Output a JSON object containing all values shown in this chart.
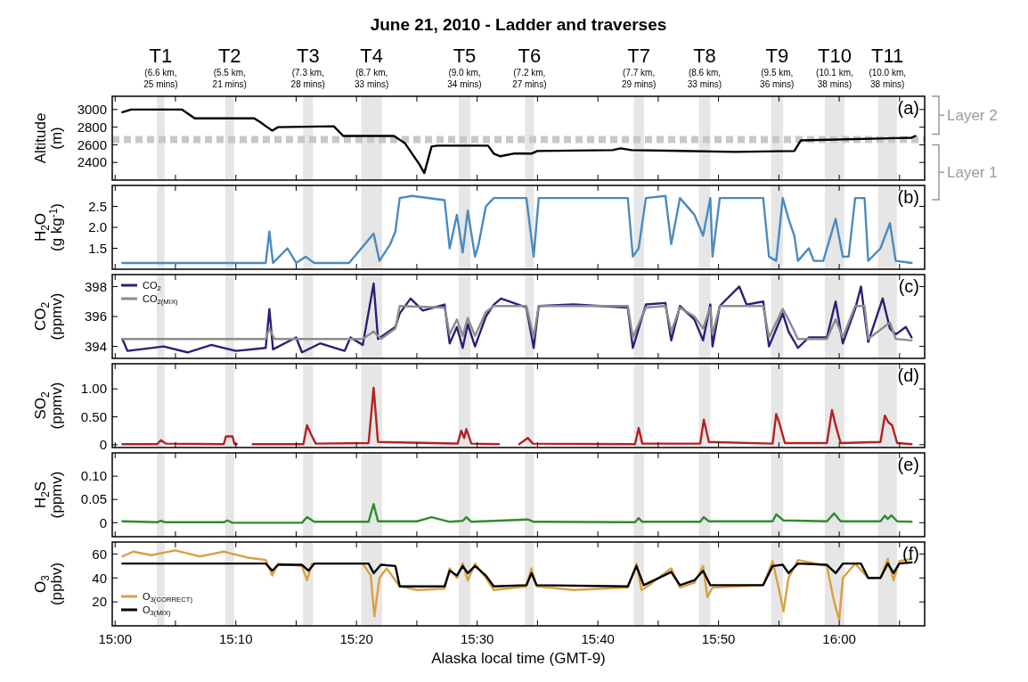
{
  "chart_data": [
    {
      "type": "line",
      "title": "June 21, 2010 - Ladder and traverses",
      "ylabel": "Altitude (m)",
      "xlim": [
        14.996,
        16.118
      ],
      "ylim": [
        2200,
        3150
      ],
      "yticks": [
        2400,
        2600,
        2800,
        3000
      ],
      "tick_labels": "y",
      "xticks": [
        {
          "value": 15,
          "label": null
        },
        {
          "value": 15.0833,
          "label": null
        },
        {
          "value": 15.1667,
          "label": null
        },
        {
          "value": 15.25,
          "label": null
        },
        {
          "value": 15.3333,
          "label": null
        },
        {
          "value": 15.4167,
          "label": null
        },
        {
          "value": 15.5,
          "label": null
        },
        {
          "value": 15.5833,
          "label": null
        },
        {
          "value": 15.6667,
          "label": null
        },
        {
          "value": 15.75,
          "label": null
        },
        {
          "value": 15.8333,
          "label": null
        },
        {
          "value": 15.9167,
          "label": null
        },
        {
          "value": 16,
          "label": null
        },
        {
          "value": 16.0833,
          "label": null
        }
      ],
      "bands": [
        {
          "axis": "x",
          "from": 15.0577,
          "to": 15.0682,
          "label": "T1 (6.6 km, 25 mins)",
          "color": "#e6e6e6"
        },
        {
          "axis": "x",
          "from": 15.152,
          "to": 15.1642,
          "label": "T2 (5.5 km, 21 mins)",
          "color": "#e6e6e6"
        },
        {
          "axis": "x",
          "from": 15.2595,
          "to": 15.2733,
          "label": "T3 (7.3 km, 28 mins)",
          "color": "#e6e6e6"
        },
        {
          "axis": "x",
          "from": 15.3398,
          "to": 15.3687,
          "label": "T4 (8.7 km, 33 mins)",
          "color": "#e6e6e6"
        },
        {
          "axis": "x",
          "from": 15.4743,
          "to": 15.4908,
          "label": "T5 (9.0 km, 34 mins)",
          "color": "#e6e6e6"
        },
        {
          "axis": "x",
          "from": 15.566,
          "to": 15.5783,
          "label": "T6 (7.2 km, 27 mins)",
          "color": "#e6e6e6"
        },
        {
          "axis": "x",
          "from": 15.7163,
          "to": 15.7303,
          "label": "T7 (7.7 km, 29 mins)",
          "color": "#e6e6e6"
        },
        {
          "axis": "x",
          "from": 15.8062,
          "to": 15.822,
          "label": "T8 (8.6 km, 33 mins)",
          "color": "#e6e6e6"
        },
        {
          "axis": "x",
          "from": 15.9058,
          "to": 15.9225,
          "label": "T9 (9.5 km, 36 mins)",
          "color": "#e6e6e6"
        },
        {
          "axis": "x",
          "from": 15.9802,
          "to": 16.0072,
          "label": "T10 (10.1 km, 38 mins)",
          "color": "#e6e6e6"
        },
        {
          "axis": "x",
          "from": 16.0535,
          "to": 16.0797,
          "label": "T11 (10.0 km, 38 mins)",
          "color": "#e6e6e6"
        }
      ],
      "ref_lines": [
        {
          "axis": "y",
          "value": 2660,
          "color": "#c8c8c8",
          "line_style": "dashed"
        }
      ],
      "annotations": [
        "(a)",
        "Layer 2",
        "Layer 1"
      ],
      "series": [
        {
          "color": "#000000",
          "x": [
            15.01,
            15.022,
            15.092,
            15.11,
            15.192,
            15.2,
            15.21,
            15.217,
            15.225,
            15.302,
            15.315,
            15.385,
            15.4,
            15.42,
            15.427,
            15.437,
            15.445,
            15.515,
            15.523,
            15.532,
            15.55,
            15.575,
            15.583,
            15.687,
            15.698,
            15.713,
            15.857,
            15.938,
            15.947,
            16.1,
            16.105
          ],
          "values": [
            2970,
            3000,
            3000,
            2900,
            2900,
            2860,
            2800,
            2760,
            2800,
            2810,
            2700,
            2700,
            2620,
            2380,
            2280,
            2580,
            2590,
            2590,
            2500,
            2470,
            2500,
            2500,
            2530,
            2540,
            2560,
            2540,
            2520,
            2530,
            2650,
            2680,
            2700
          ]
        }
      ]
    },
    {
      "type": "line",
      "ylabel": "H$_{2}$O (g kg$^{-1}$)",
      "xlim": [
        14.996,
        16.118
      ],
      "ylim": [
        1.0,
        3.0
      ],
      "yticks": [
        {
          "value": 1.5,
          "label": "1.5"
        },
        {
          "value": 2.0,
          "label": "2.0"
        },
        {
          "value": 2.5,
          "label": "2.5"
        }
      ],
      "tick_labels": "y",
      "xticks": [
        {
          "value": 15,
          "label": null
        },
        {
          "value": 15.0833,
          "label": null
        },
        {
          "value": 15.1667,
          "label": null
        },
        {
          "value": 15.25,
          "label": null
        },
        {
          "value": 15.3333,
          "label": null
        },
        {
          "value": 15.4167,
          "label": null
        },
        {
          "value": 15.5,
          "label": null
        },
        {
          "value": 15.5833,
          "label": null
        },
        {
          "value": 15.6667,
          "label": null
        },
        {
          "value": 15.75,
          "label": null
        },
        {
          "value": 15.8333,
          "label": null
        },
        {
          "value": 15.9167,
          "label": null
        },
        {
          "value": 16,
          "label": null
        },
        {
          "value": 16.0833,
          "label": null
        }
      ],
      "bands": [
        {
          "axis": "x",
          "from": 15.0577,
          "to": 15.0682,
          "color": "#e6e6e6"
        },
        {
          "axis": "x",
          "from": 15.152,
          "to": 15.1642,
          "color": "#e6e6e6"
        },
        {
          "axis": "x",
          "from": 15.2595,
          "to": 15.2733,
          "color": "#e6e6e6"
        },
        {
          "axis": "x",
          "from": 15.3398,
          "to": 15.3687,
          "color": "#e6e6e6"
        },
        {
          "axis": "x",
          "from": 15.4743,
          "to": 15.4908,
          "color": "#e6e6e6"
        },
        {
          "axis": "x",
          "from": 15.566,
          "to": 15.5783,
          "color": "#e6e6e6"
        },
        {
          "axis": "x",
          "from": 15.7163,
          "to": 15.7303,
          "color": "#e6e6e6"
        },
        {
          "axis": "x",
          "from": 15.8062,
          "to": 15.822,
          "color": "#e6e6e6"
        },
        {
          "axis": "x",
          "from": 15.9058,
          "to": 15.9225,
          "color": "#e6e6e6"
        },
        {
          "axis": "x",
          "from": 15.9802,
          "to": 16.0072,
          "color": "#e6e6e6"
        },
        {
          "axis": "x",
          "from": 16.0535,
          "to": 16.0797,
          "color": "#e6e6e6"
        }
      ],
      "annotations": [
        "(b)"
      ],
      "series": [
        {
          "color": "#4a8bbf",
          "x": [
            15.01,
            15.208,
            15.213,
            15.218,
            15.238,
            15.25,
            15.263,
            15.275,
            15.323,
            15.345,
            15.357,
            15.365,
            15.38,
            15.387,
            15.393,
            15.41,
            15.455,
            15.462,
            15.472,
            15.48,
            15.487,
            15.497,
            15.502,
            15.512,
            15.523,
            15.568,
            15.578,
            15.585,
            15.708,
            15.715,
            15.723,
            15.733,
            15.76,
            15.768,
            15.78,
            15.8,
            15.812,
            15.822,
            15.825,
            15.835,
            15.895,
            15.903,
            15.913,
            15.922,
            15.93,
            15.938,
            15.943,
            15.958,
            15.965,
            15.978,
            15.995,
            16.005,
            16.013,
            16.022,
            16.035,
            16.04,
            16.057,
            16.07,
            16.078,
            16.1
          ],
          "values": [
            1.15,
            1.15,
            1.9,
            1.15,
            1.5,
            1.15,
            1.3,
            1.15,
            1.15,
            1.6,
            1.85,
            1.2,
            1.6,
            1.9,
            2.7,
            2.75,
            2.65,
            1.5,
            2.3,
            1.4,
            2.4,
            1.3,
            1.6,
            2.5,
            2.7,
            2.7,
            1.3,
            2.7,
            2.7,
            1.3,
            1.5,
            2.7,
            2.75,
            1.6,
            2.7,
            2.3,
            1.8,
            2.7,
            1.3,
            2.7,
            2.7,
            1.3,
            1.2,
            2.7,
            2.2,
            1.8,
            1.2,
            1.5,
            1.2,
            1.2,
            2.2,
            1.3,
            1.3,
            2.7,
            2.7,
            1.2,
            1.5,
            2.1,
            1.2,
            1.15
          ]
        }
      ]
    },
    {
      "type": "line",
      "ylabel": "CO$_{2}$ (ppmv)",
      "xlim": [
        14.996,
        16.118
      ],
      "ylim": [
        393.2,
        398.8
      ],
      "yticks": [
        394,
        396,
        398
      ],
      "tick_labels": "y",
      "legend": "top left",
      "xticks": [
        {
          "value": 15,
          "label": null
        },
        {
          "value": 15.0833,
          "label": null
        },
        {
          "value": 15.1667,
          "label": null
        },
        {
          "value": 15.25,
          "label": null
        },
        {
          "value": 15.3333,
          "label": null
        },
        {
          "value": 15.4167,
          "label": null
        },
        {
          "value": 15.5,
          "label": null
        },
        {
          "value": 15.5833,
          "label": null
        },
        {
          "value": 15.6667,
          "label": null
        },
        {
          "value": 15.75,
          "label": null
        },
        {
          "value": 15.8333,
          "label": null
        },
        {
          "value": 15.9167,
          "label": null
        },
        {
          "value": 16,
          "label": null
        },
        {
          "value": 16.0833,
          "label": null
        }
      ],
      "bands": [
        {
          "axis": "x",
          "from": 15.0577,
          "to": 15.0682,
          "color": "#e6e6e6"
        },
        {
          "axis": "x",
          "from": 15.152,
          "to": 15.1642,
          "color": "#e6e6e6"
        },
        {
          "axis": "x",
          "from": 15.2595,
          "to": 15.2733,
          "color": "#e6e6e6"
        },
        {
          "axis": "x",
          "from": 15.3398,
          "to": 15.3687,
          "color": "#e6e6e6"
        },
        {
          "axis": "x",
          "from": 15.4743,
          "to": 15.4908,
          "color": "#e6e6e6"
        },
        {
          "axis": "x",
          "from": 15.566,
          "to": 15.5783,
          "color": "#e6e6e6"
        },
        {
          "axis": "x",
          "from": 15.7163,
          "to": 15.7303,
          "color": "#e6e6e6"
        },
        {
          "axis": "x",
          "from": 15.8062,
          "to": 15.822,
          "color": "#e6e6e6"
        },
        {
          "axis": "x",
          "from": 15.9058,
          "to": 15.9225,
          "color": "#e6e6e6"
        },
        {
          "axis": "x",
          "from": 15.9802,
          "to": 16.0072,
          "color": "#e6e6e6"
        },
        {
          "axis": "x",
          "from": 16.0535,
          "to": 16.0797,
          "color": "#e6e6e6"
        }
      ],
      "annotations": [
        "(c)"
      ],
      "series": [
        {
          "name": "CO$_{2}$",
          "color": "#2b1f78",
          "x": [
            15.01,
            15.017,
            15.067,
            15.1,
            15.133,
            15.167,
            15.208,
            15.213,
            15.218,
            15.25,
            15.258,
            15.283,
            15.317,
            15.325,
            15.342,
            15.357,
            15.363,
            15.387,
            15.393,
            15.408,
            15.425,
            15.455,
            15.462,
            15.472,
            15.48,
            15.487,
            15.497,
            15.512,
            15.523,
            15.533,
            15.568,
            15.578,
            15.585,
            15.633,
            15.708,
            15.715,
            15.733,
            15.76,
            15.768,
            15.78,
            15.8,
            15.812,
            15.822,
            15.825,
            15.835,
            15.862,
            15.872,
            15.895,
            15.903,
            15.922,
            15.93,
            15.943,
            15.958,
            15.983,
            15.995,
            16.005,
            16.022,
            16.03,
            16.04,
            16.06,
            16.07,
            16.078,
            16.092,
            16.1
          ],
          "values": [
            394.5,
            393.7,
            394.0,
            393.6,
            394.1,
            393.7,
            393.9,
            396.5,
            393.8,
            394.6,
            393.6,
            394.2,
            393.7,
            394.6,
            394.1,
            398.2,
            394.5,
            395.3,
            396.2,
            397.2,
            396.4,
            396.8,
            394.2,
            395.3,
            393.9,
            395.5,
            394.0,
            396.0,
            396.8,
            397.2,
            396.6,
            393.9,
            396.7,
            396.8,
            396.6,
            393.9,
            396.8,
            396.9,
            394.4,
            396.7,
            395.8,
            394.4,
            396.8,
            394.0,
            396.7,
            398.0,
            396.8,
            397.0,
            394.0,
            396.2,
            395.0,
            393.9,
            394.6,
            394.6,
            397.0,
            394.2,
            396.5,
            398.0,
            394.3,
            397.2,
            395.2,
            394.8,
            395.3,
            394.6
          ]
        },
        {
          "name": "CO$_{2(MIX)}$",
          "color": "#8c8c8c",
          "x": [
            15.01,
            15.208,
            15.213,
            15.22,
            15.342,
            15.357,
            15.367,
            15.387,
            15.393,
            15.455,
            15.462,
            15.472,
            15.48,
            15.487,
            15.497,
            15.512,
            15.523,
            15.568,
            15.578,
            15.585,
            15.708,
            15.715,
            15.733,
            15.76,
            15.768,
            15.78,
            15.8,
            15.812,
            15.822,
            15.825,
            15.835,
            15.895,
            15.903,
            15.922,
            15.93,
            15.943,
            15.983,
            15.995,
            16.005,
            16.022,
            16.035,
            16.04,
            16.07,
            16.078,
            16.1
          ],
          "values": [
            394.5,
            394.5,
            395.2,
            394.5,
            394.5,
            395.0,
            394.5,
            395.2,
            396.7,
            396.6,
            394.8,
            395.8,
            394.7,
            395.9,
            394.7,
            396.3,
            396.7,
            396.7,
            394.6,
            396.7,
            396.7,
            394.6,
            396.6,
            396.7,
            395.0,
            396.6,
            396.0,
            395.2,
            396.6,
            394.8,
            396.7,
            396.7,
            394.6,
            396.5,
            395.8,
            394.5,
            394.5,
            395.8,
            394.6,
            396.7,
            396.7,
            394.5,
            395.6,
            394.5,
            394.4
          ]
        }
      ]
    },
    {
      "type": "line",
      "ylabel": "SO$_{2}$ (ppmv)",
      "xlim": [
        14.996,
        16.118
      ],
      "ylim": [
        -0.05,
        1.45
      ],
      "yticks": [
        0,
        {
          "value": 0.5,
          "label": "0.50"
        },
        {
          "value": 1.0,
          "label": "1.00"
        }
      ],
      "tick_labels": "y",
      "xticks": [
        {
          "value": 15,
          "label": null
        },
        {
          "value": 15.0833,
          "label": null
        },
        {
          "value": 15.1667,
          "label": null
        },
        {
          "value": 15.25,
          "label": null
        },
        {
          "value": 15.3333,
          "label": null
        },
        {
          "value": 15.4167,
          "label": null
        },
        {
          "value": 15.5,
          "label": null
        },
        {
          "value": 15.5833,
          "label": null
        },
        {
          "value": 15.6667,
          "label": null
        },
        {
          "value": 15.75,
          "label": null
        },
        {
          "value": 15.8333,
          "label": null
        },
        {
          "value": 15.9167,
          "label": null
        },
        {
          "value": 16,
          "label": null
        },
        {
          "value": 16.0833,
          "label": null
        }
      ],
      "bands": [
        {
          "axis": "x",
          "from": 15.0577,
          "to": 15.0682,
          "color": "#e6e6e6"
        },
        {
          "axis": "x",
          "from": 15.152,
          "to": 15.1642,
          "color": "#e6e6e6"
        },
        {
          "axis": "x",
          "from": 15.2595,
          "to": 15.2733,
          "color": "#e6e6e6"
        },
        {
          "axis": "x",
          "from": 15.3398,
          "to": 15.3687,
          "color": "#e6e6e6"
        },
        {
          "axis": "x",
          "from": 15.4743,
          "to": 15.4908,
          "color": "#e6e6e6"
        },
        {
          "axis": "x",
          "from": 15.566,
          "to": 15.5783,
          "color": "#e6e6e6"
        },
        {
          "axis": "x",
          "from": 15.7163,
          "to": 15.7303,
          "color": "#e6e6e6"
        },
        {
          "axis": "x",
          "from": 15.8062,
          "to": 15.822,
          "color": "#e6e6e6"
        },
        {
          "axis": "x",
          "from": 15.9058,
          "to": 15.9225,
          "color": "#e6e6e6"
        },
        {
          "axis": "x",
          "from": 15.9802,
          "to": 16.0072,
          "color": "#e6e6e6"
        },
        {
          "axis": "x",
          "from": 16.0535,
          "to": 16.0797,
          "color": "#e6e6e6"
        }
      ],
      "annotations": [
        "(d)"
      ],
      "series": [
        {
          "color": "#b22222",
          "x": [
            15.01,
            15.058,
            15.063,
            15.07,
            15.15,
            15.153,
            15.162,
            15.165,
            15.168,
            15.175,
            15.19,
            15.26,
            15.265,
            15.27,
            15.277,
            15.35,
            15.357,
            15.363,
            15.473,
            15.478,
            15.482,
            15.485,
            15.492,
            15.53,
            15.542,
            15.558,
            15.57,
            15.577,
            15.718,
            15.723,
            15.728,
            15.808,
            15.813,
            15.82,
            15.908,
            15.913,
            15.917,
            15.925,
            15.983,
            15.99,
            15.995,
            16.002,
            16.057,
            16.063,
            16.068,
            16.073,
            16.08,
            16.1
          ],
          "values": [
            0.01,
            0.01,
            0.08,
            0.02,
            0.01,
            0.15,
            0.15,
            0.01,
            0.01,
            null,
            0.01,
            0.01,
            0.35,
            0.2,
            0.02,
            0.03,
            1.02,
            0.05,
            0.02,
            0.25,
            0.12,
            0.28,
            0.02,
            0.01,
            null,
            0.01,
            0.12,
            0.02,
            0.01,
            0.3,
            0.02,
            0.02,
            0.45,
            0.05,
            0.02,
            0.55,
            0.4,
            0.03,
            0.03,
            0.62,
            0.35,
            0.03,
            0.05,
            0.52,
            0.4,
            0.35,
            0.03,
            0.01
          ]
        }
      ]
    },
    {
      "type": "line",
      "ylabel": "H$_{2}$S (ppmv)",
      "xlim": [
        14.996,
        16.118
      ],
      "ylim": [
        -0.03,
        0.15
      ],
      "yticks": [
        0,
        {
          "value": 0.05,
          "label": "0.05"
        },
        {
          "value": 0.1,
          "label": "0.10"
        }
      ],
      "tick_labels": "y",
      "xticks": [
        {
          "value": 15,
          "label": null
        },
        {
          "value": 15.0833,
          "label": null
        },
        {
          "value": 15.1667,
          "label": null
        },
        {
          "value": 15.25,
          "label": null
        },
        {
          "value": 15.3333,
          "label": null
        },
        {
          "value": 15.4167,
          "label": null
        },
        {
          "value": 15.5,
          "label": null
        },
        {
          "value": 15.5833,
          "label": null
        },
        {
          "value": 15.6667,
          "label": null
        },
        {
          "value": 15.75,
          "label": null
        },
        {
          "value": 15.8333,
          "label": null
        },
        {
          "value": 15.9167,
          "label": null
        },
        {
          "value": 16,
          "label": null
        },
        {
          "value": 16.0833,
          "label": null
        }
      ],
      "bands": [
        {
          "axis": "x",
          "from": 15.0577,
          "to": 15.0682,
          "color": "#e6e6e6"
        },
        {
          "axis": "x",
          "from": 15.152,
          "to": 15.1642,
          "color": "#e6e6e6"
        },
        {
          "axis": "x",
          "from": 15.2595,
          "to": 15.2733,
          "color": "#e6e6e6"
        },
        {
          "axis": "x",
          "from": 15.3398,
          "to": 15.3687,
          "color": "#e6e6e6"
        },
        {
          "axis": "x",
          "from": 15.4743,
          "to": 15.4908,
          "color": "#e6e6e6"
        },
        {
          "axis": "x",
          "from": 15.566,
          "to": 15.5783,
          "color": "#e6e6e6"
        },
        {
          "axis": "x",
          "from": 15.7163,
          "to": 15.7303,
          "color": "#e6e6e6"
        },
        {
          "axis": "x",
          "from": 15.8062,
          "to": 15.822,
          "color": "#e6e6e6"
        },
        {
          "axis": "x",
          "from": 15.9058,
          "to": 15.9225,
          "color": "#e6e6e6"
        },
        {
          "axis": "x",
          "from": 15.9802,
          "to": 16.0072,
          "color": "#e6e6e6"
        },
        {
          "axis": "x",
          "from": 16.0535,
          "to": 16.0797,
          "color": "#e6e6e6"
        }
      ],
      "annotations": [
        "(e)"
      ],
      "series": [
        {
          "color": "#2e8b2e",
          "x": [
            15.01,
            15.058,
            15.063,
            15.07,
            15.15,
            15.155,
            15.162,
            15.258,
            15.265,
            15.275,
            15.35,
            15.357,
            15.363,
            15.417,
            15.437,
            15.462,
            15.48,
            15.485,
            15.492,
            15.57,
            15.578,
            15.718,
            15.723,
            15.728,
            15.808,
            15.813,
            15.82,
            15.908,
            15.913,
            15.923,
            15.983,
            15.993,
            16.002,
            16.057,
            16.063,
            16.067,
            16.072,
            16.08,
            16.1
          ],
          "values": [
            0.003,
            0.001,
            0.004,
            0.001,
            0.001,
            0.005,
            0.0,
            0.0,
            0.012,
            0.002,
            0.002,
            0.04,
            0.003,
            0.003,
            0.012,
            0.002,
            0.004,
            0.012,
            0.002,
            0.007,
            0.002,
            0.001,
            0.01,
            0.002,
            0.002,
            0.012,
            0.003,
            0.003,
            0.018,
            0.005,
            0.003,
            0.02,
            0.003,
            0.003,
            0.015,
            0.008,
            0.016,
            0.003,
            0.002
          ]
        }
      ]
    },
    {
      "type": "line",
      "ylabel": "O$_{3}$ (ppbv)",
      "xlabel": "Alaska local time (GMT-9)",
      "xlim": [
        14.996,
        16.118
      ],
      "ylim": [
        0,
        70
      ],
      "yticks": [
        20,
        40,
        60
      ],
      "legend": "bottom left",
      "xticks": [
        {
          "value": 15,
          "label": "15:00"
        },
        {
          "value": 15.0833,
          "label": null
        },
        {
          "value": 15.1667,
          "label": "15:10"
        },
        {
          "value": 15.25,
          "label": null
        },
        {
          "value": 15.3333,
          "label": "15:20"
        },
        {
          "value": 15.4167,
          "label": null
        },
        {
          "value": 15.5,
          "label": "15:30"
        },
        {
          "value": 15.5833,
          "label": null
        },
        {
          "value": 15.6667,
          "label": "15:40"
        },
        {
          "value": 15.75,
          "label": null
        },
        {
          "value": 15.8333,
          "label": "15:50"
        },
        {
          "value": 15.9167,
          "label": null
        },
        {
          "value": 16,
          "label": "16:00"
        },
        {
          "value": 16.0833,
          "label": null
        }
      ],
      "bands": [
        {
          "axis": "x",
          "from": 15.0577,
          "to": 15.0682,
          "color": "#e6e6e6"
        },
        {
          "axis": "x",
          "from": 15.152,
          "to": 15.1642,
          "color": "#e6e6e6"
        },
        {
          "axis": "x",
          "from": 15.2595,
          "to": 15.2733,
          "color": "#e6e6e6"
        },
        {
          "axis": "x",
          "from": 15.3398,
          "to": 15.3687,
          "color": "#e6e6e6"
        },
        {
          "axis": "x",
          "from": 15.4743,
          "to": 15.4908,
          "color": "#e6e6e6"
        },
        {
          "axis": "x",
          "from": 15.566,
          "to": 15.5783,
          "color": "#e6e6e6"
        },
        {
          "axis": "x",
          "from": 15.7163,
          "to": 15.7303,
          "color": "#e6e6e6"
        },
        {
          "axis": "x",
          "from": 15.8062,
          "to": 15.822,
          "color": "#e6e6e6"
        },
        {
          "axis": "x",
          "from": 15.9058,
          "to": 15.9225,
          "color": "#e6e6e6"
        },
        {
          "axis": "x",
          "from": 15.9802,
          "to": 16.0072,
          "color": "#e6e6e6"
        },
        {
          "axis": "x",
          "from": 16.0535,
          "to": 16.0797,
          "color": "#e6e6e6"
        }
      ],
      "annotations": [
        "(f)"
      ],
      "series": [
        {
          "name": "O$_{3(CORRECT)}$",
          "color": "#d9a040",
          "x": [
            15.01,
            15.025,
            15.05,
            15.083,
            15.117,
            15.15,
            15.183,
            15.208,
            15.217,
            15.225,
            15.258,
            15.265,
            15.272,
            15.342,
            15.353,
            15.358,
            15.365,
            15.375,
            15.393,
            15.417,
            15.455,
            15.462,
            15.472,
            15.48,
            15.487,
            15.497,
            15.512,
            15.523,
            15.568,
            15.575,
            15.582,
            15.633,
            15.708,
            15.72,
            15.727,
            15.733,
            15.768,
            15.78,
            15.8,
            15.812,
            15.818,
            15.825,
            15.895,
            15.908,
            15.917,
            15.923,
            15.93,
            15.943,
            15.983,
            15.993,
            16.0,
            16.005,
            16.022,
            16.04,
            16.057,
            16.067,
            16.075,
            16.083,
            16.1
          ],
          "values": [
            58,
            62,
            59,
            63,
            58,
            62,
            57,
            55,
            42,
            52,
            50,
            38,
            52,
            52,
            42,
            8,
            40,
            48,
            33,
            30,
            31,
            48,
            40,
            52,
            38,
            52,
            40,
            30,
            33,
            48,
            33,
            30,
            32,
            52,
            30,
            32,
            48,
            32,
            36,
            50,
            24,
            32,
            34,
            54,
            30,
            12,
            40,
            55,
            50,
            20,
            5,
            40,
            52,
            40,
            40,
            56,
            38,
            54,
            56
          ]
        },
        {
          "name": "O$_{3(MIX)}$",
          "color": "#000000",
          "x": [
            15.01,
            15.208,
            15.217,
            15.225,
            15.258,
            15.267,
            15.275,
            15.35,
            15.357,
            15.367,
            15.387,
            15.393,
            15.455,
            15.462,
            15.472,
            15.48,
            15.487,
            15.497,
            15.512,
            15.523,
            15.568,
            15.575,
            15.582,
            15.708,
            15.72,
            15.73,
            15.768,
            15.78,
            15.8,
            15.812,
            15.822,
            15.895,
            15.908,
            15.922,
            15.93,
            15.943,
            15.983,
            15.995,
            16.005,
            16.03,
            16.04,
            16.057,
            16.067,
            16.075,
            16.083,
            16.1
          ],
          "values": [
            52,
            52,
            46,
            51,
            51,
            46,
            52,
            52,
            44,
            51,
            50,
            33,
            33,
            46,
            42,
            50,
            44,
            50,
            42,
            33,
            34,
            44,
            34,
            33,
            50,
            34,
            45,
            34,
            38,
            46,
            34,
            34,
            50,
            51,
            44,
            52,
            51,
            44,
            52,
            52,
            40,
            40,
            52,
            44,
            52,
            53
          ]
        }
      ]
    }
  ]
}
